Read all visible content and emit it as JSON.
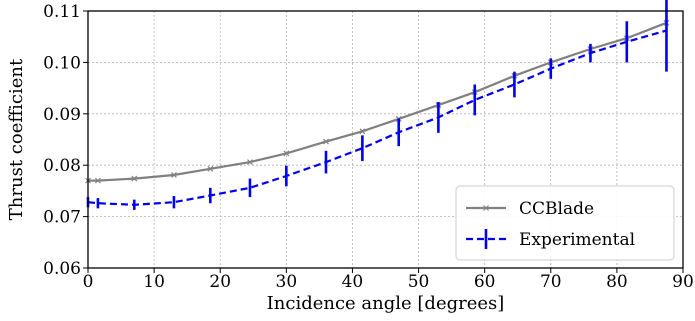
{
  "chart_data": {
    "type": "line",
    "xlabel": "Incidence angle [degrees]",
    "ylabel": "Thrust coefficient",
    "xlim": [
      0,
      90
    ],
    "ylim": [
      0.06,
      0.11
    ],
    "xticks": [
      0,
      10,
      20,
      30,
      40,
      50,
      60,
      70,
      80,
      90
    ],
    "yticks": [
      0.06,
      0.07,
      0.08,
      0.09,
      0.1,
      0.11
    ],
    "xtick_labels": [
      "0",
      "10",
      "20",
      "30",
      "40",
      "50",
      "60",
      "70",
      "80",
      "90"
    ],
    "ytick_labels": [
      "0.06",
      "0.07",
      "0.08",
      "0.09",
      "0.10",
      "0.11"
    ],
    "grid": true,
    "legend_position": "bottom-right",
    "series": [
      {
        "name": "CCBlade",
        "color": "#808080",
        "style": "solid",
        "marker": "x",
        "x": [
          0,
          1.5,
          7,
          13,
          18.5,
          24.5,
          30,
          36,
          41.5,
          47,
          53,
          58.5,
          64.5,
          70,
          76,
          81.5,
          87.5
        ],
        "y": [
          0.077,
          0.077,
          0.0774,
          0.0781,
          0.0793,
          0.0806,
          0.0823,
          0.0846,
          0.0866,
          0.089,
          0.0917,
          0.0942,
          0.0974,
          0.1,
          0.1026,
          0.1047,
          0.1077
        ]
      },
      {
        "name": "Experimental",
        "color": "#0000ee",
        "style": "dashed",
        "x": [
          0,
          1.5,
          7,
          13,
          18.5,
          24.5,
          30,
          36,
          41.5,
          47,
          53,
          58.5,
          64.5,
          70,
          76,
          81.5,
          87.5
        ],
        "y": [
          0.0728,
          0.0726,
          0.0723,
          0.0728,
          0.0741,
          0.0756,
          0.0779,
          0.0806,
          0.0833,
          0.0864,
          0.0893,
          0.0927,
          0.0957,
          0.0988,
          0.1018,
          0.104,
          0.1062
        ],
        "err": [
          0.001,
          0.001,
          0.001,
          0.0012,
          0.0015,
          0.0018,
          0.002,
          0.0022,
          0.0025,
          0.0027,
          0.003,
          0.003,
          0.0025,
          0.002,
          0.0018,
          0.004,
          0.008
        ]
      }
    ]
  }
}
